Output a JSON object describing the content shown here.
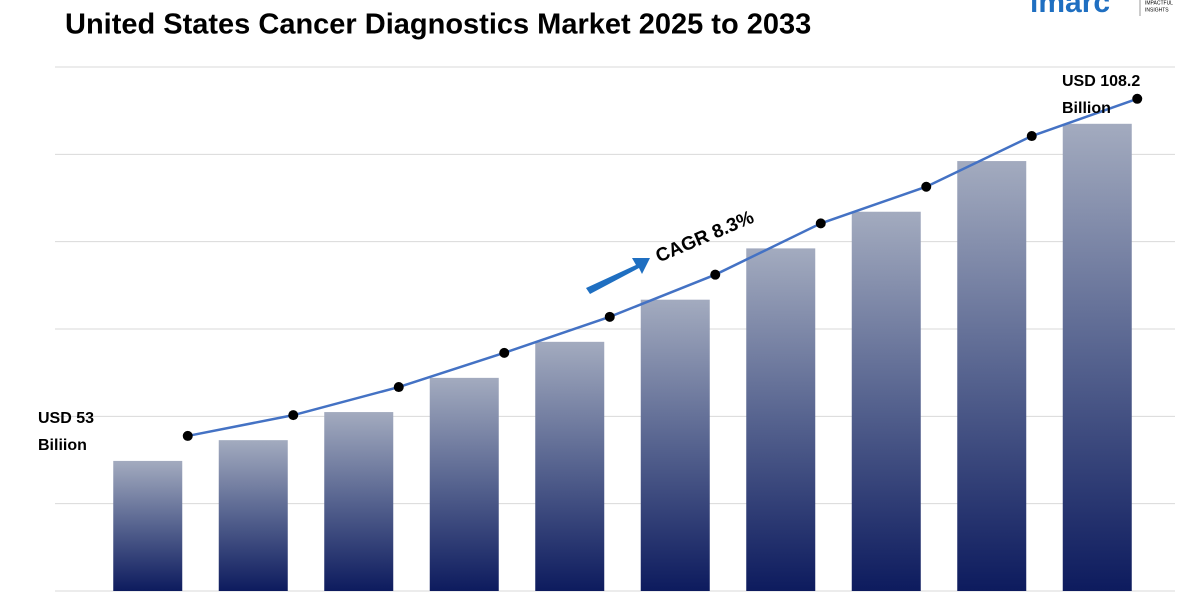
{
  "chart_data": {
    "type": "bar",
    "title": "United States Cancer Diagnostics Market 2025 to 2033",
    "categories": [
      null,
      null,
      null,
      null,
      null,
      null,
      null,
      null,
      null,
      null
    ],
    "values": [
      53,
      56.4,
      61,
      66.6,
      72.5,
      79.4,
      87.8,
      93.8,
      102.1,
      108.2
    ],
    "color": "#0d1b5e",
    "line_color": "#4472c4",
    "ylim": [
      31.7,
      117.5
    ],
    "grid": true,
    "annotations": {
      "start": [
        "USD 53",
        "Biliion"
      ],
      "end": [
        "USD 108.2",
        "Billion"
      ],
      "cagr": "CAGR 8.3%"
    },
    "logo": {
      "name": "imarc",
      "tagline": [
        "IMPACTFUL",
        "INSIGHTS"
      ]
    }
  }
}
